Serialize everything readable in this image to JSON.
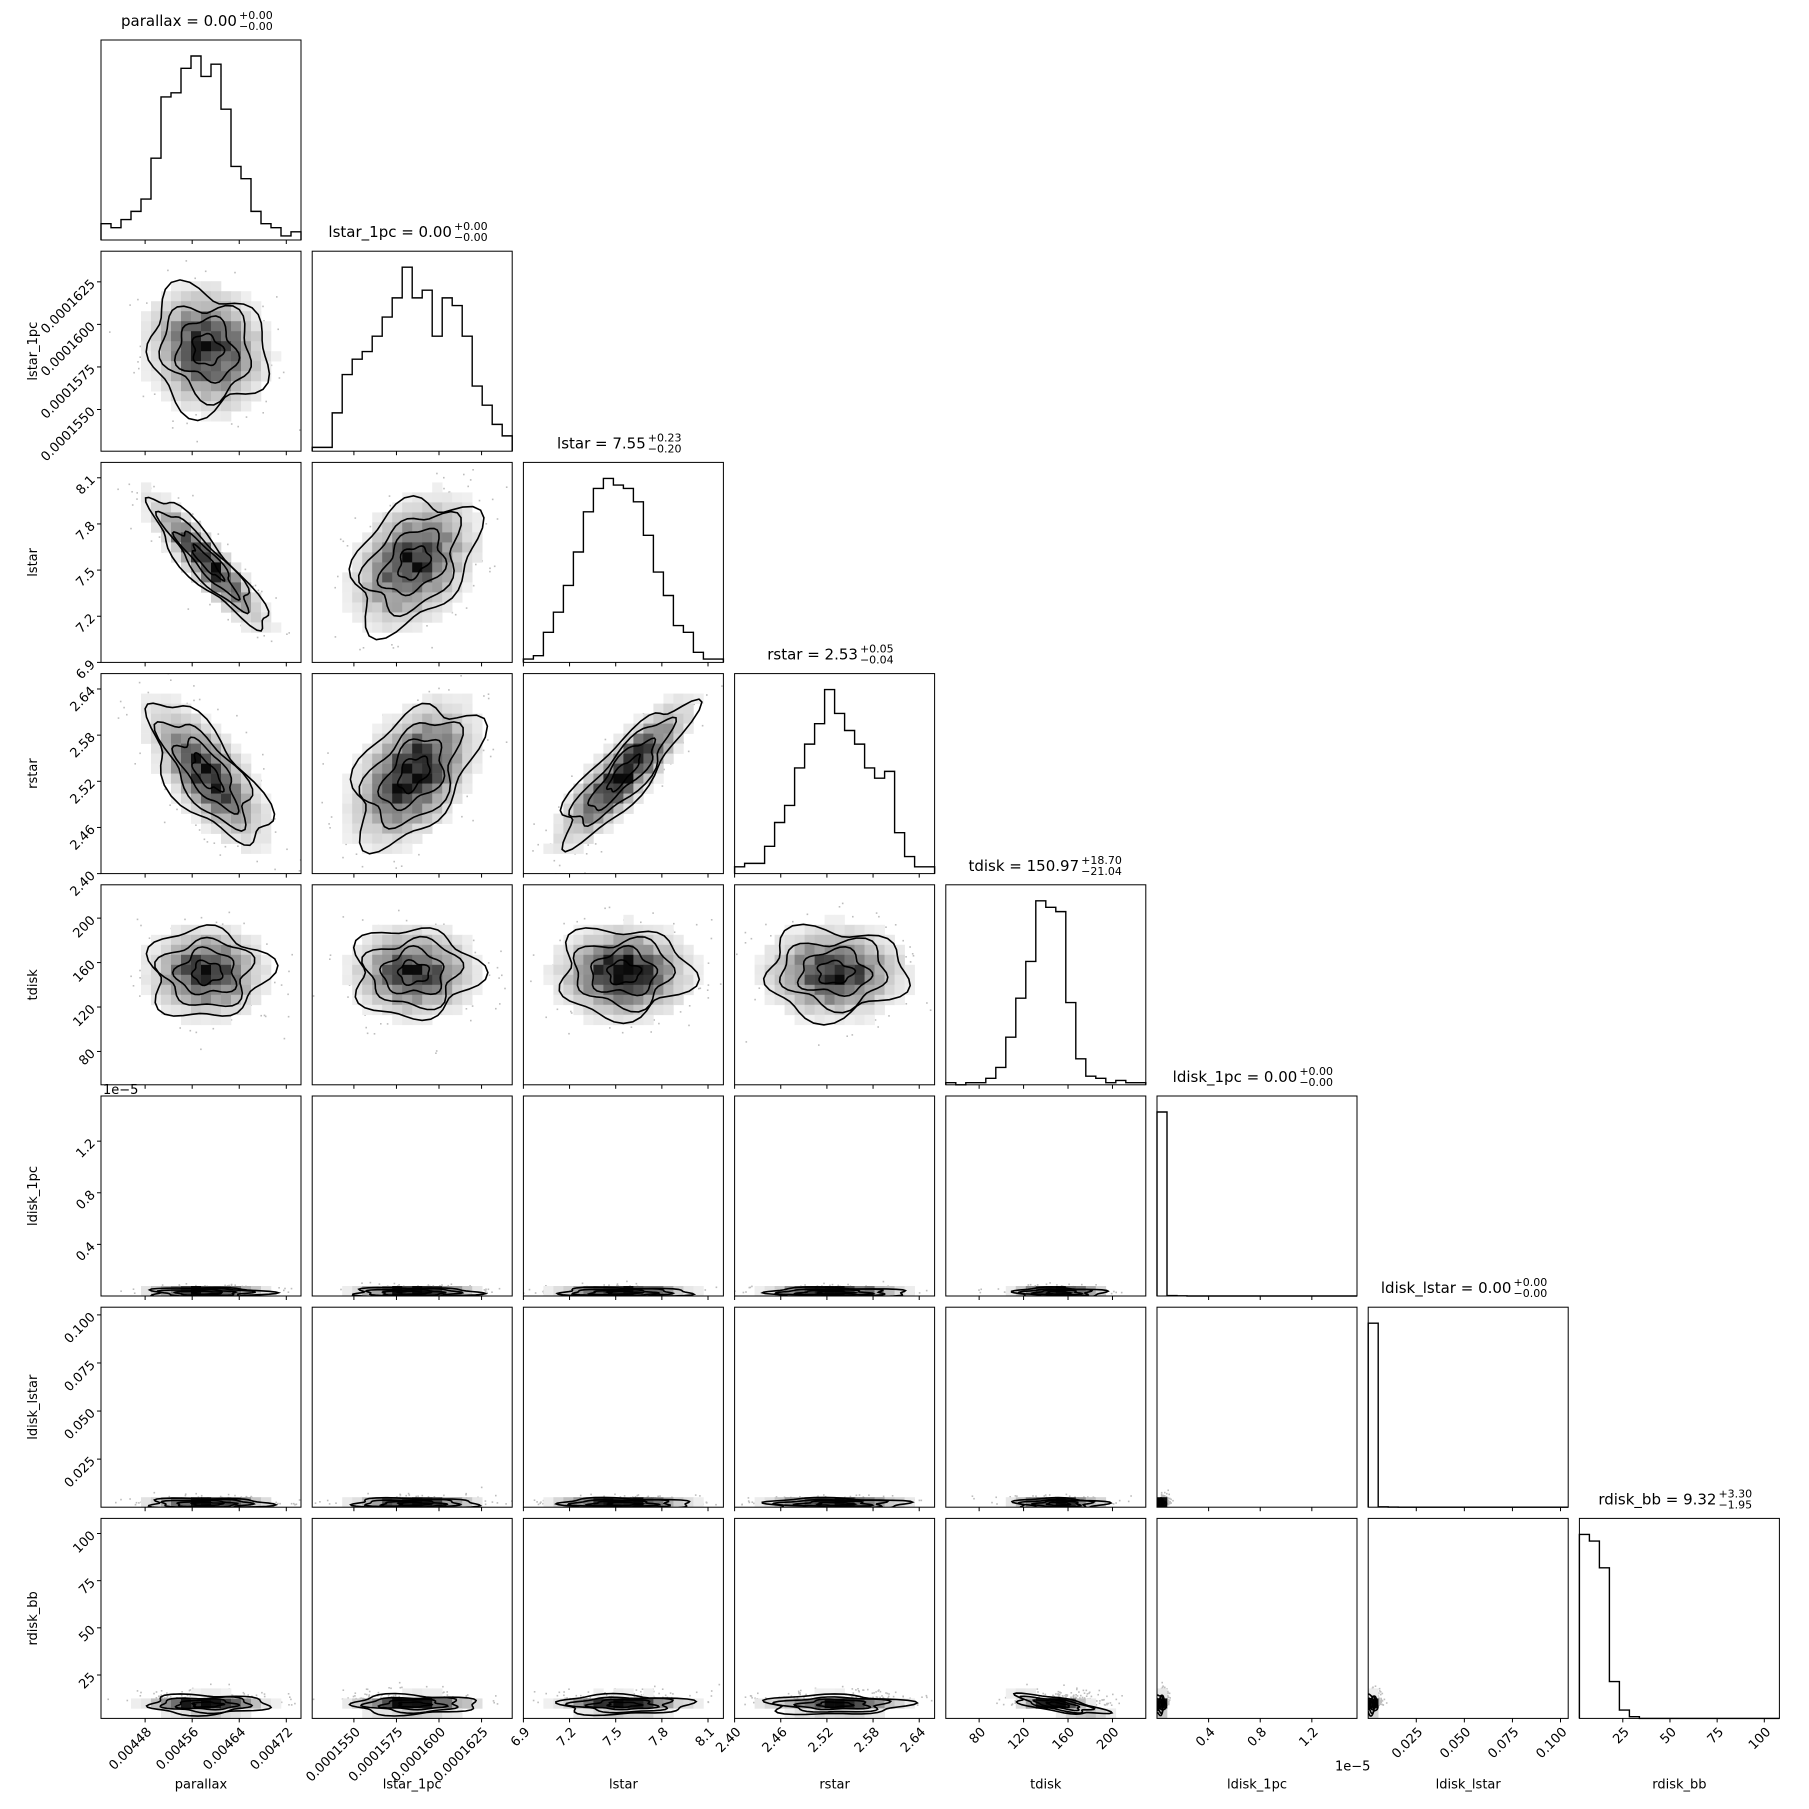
{
  "chart_data": {
    "type": "corner",
    "params": [
      "parallax",
      "lstar_1pc",
      "lstar",
      "rstar",
      "tdisk",
      "ldisk_1pc",
      "ldisk_lstar",
      "rdisk_bb"
    ],
    "titles": [
      {
        "text": "parallax = 0.00",
        "sup": "+0.00",
        "sub": "−0.00"
      },
      {
        "text": "lstar_1pc = 0.00",
        "sup": "+0.00",
        "sub": "−0.00"
      },
      {
        "text": "lstar = 7.55",
        "sup": "+0.23",
        "sub": "−0.20"
      },
      {
        "text": "rstar = 2.53",
        "sup": "+0.05",
        "sub": "−0.04"
      },
      {
        "text": "tdisk = 150.97",
        "sup": "+18.70",
        "sub": "−21.04"
      },
      {
        "text": "ldisk_1pc = 0.00",
        "sup": "+0.00",
        "sub": "−0.00"
      },
      {
        "text": "ldisk_lstar = 0.00",
        "sup": "+0.00",
        "sub": "−0.00"
      },
      {
        "text": "rdisk_bb = 9.32",
        "sup": "+3.30",
        "sub": "−1.95"
      }
    ],
    "ranges": [
      [
        0.004405,
        0.004745
      ],
      [
        0.00015255,
        0.0001643
      ],
      [
        6.9,
        8.2
      ],
      [
        2.4,
        2.66
      ],
      [
        50,
        230
      ],
      [
        0,
        1.55e-05
      ],
      [
        0,
        0.104
      ],
      [
        2,
        108
      ]
    ],
    "ticks": [
      {
        "values": [
          0.00448,
          0.00456,
          0.00464,
          0.00472
        ],
        "labels": [
          "0.00448",
          "0.00456",
          "0.00464",
          "0.00472"
        ]
      },
      {
        "values": [
          0.000155,
          0.0001575,
          0.00016,
          0.0001625
        ],
        "labels": [
          "0.0001550",
          "0.0001575",
          "0.0001600",
          "0.0001625"
        ]
      },
      {
        "values": [
          6.9,
          7.2,
          7.5,
          7.8,
          8.1
        ],
        "labels": [
          "6.9",
          "7.2",
          "7.5",
          "7.8",
          "8.1"
        ]
      },
      {
        "values": [
          2.4,
          2.46,
          2.52,
          2.58,
          2.64
        ],
        "labels": [
          "2.40",
          "2.46",
          "2.52",
          "2.58",
          "2.64"
        ]
      },
      {
        "values": [
          80,
          120,
          160,
          200
        ],
        "labels": [
          "80",
          "120",
          "160",
          "200"
        ]
      },
      {
        "values": [
          4e-06,
          8e-06,
          1.2e-05
        ],
        "labels": [
          "0.4",
          "0.8",
          "1.2"
        ]
      },
      {
        "values": [
          0.025,
          0.05,
          0.075,
          0.1
        ],
        "labels": [
          "0.025",
          "0.050",
          "0.075",
          "0.100"
        ]
      },
      {
        "values": [
          25,
          50,
          75,
          100
        ],
        "labels": [
          "25",
          "50",
          "75",
          "100"
        ]
      }
    ],
    "offset_labels": {
      "ldisk_1pc": "1e−5"
    },
    "histograms": [
      {
        "bins": 20,
        "counts": [
          4,
          3,
          5,
          7,
          10,
          20,
          35,
          36,
          42,
          45,
          40,
          43,
          32,
          18,
          15,
          7,
          4,
          3,
          1,
          2
        ]
      },
      {
        "bins": 20,
        "counts": [
          1,
          1,
          10,
          20,
          24,
          26,
          30,
          35,
          40,
          48,
          40,
          42,
          30,
          40,
          38,
          30,
          17,
          12,
          7,
          4
        ]
      },
      {
        "bins": 20,
        "counts": [
          1,
          2,
          9,
          15,
          23,
          33,
          45,
          52,
          55,
          53,
          52,
          48,
          38,
          27,
          20,
          11,
          9,
          3,
          1,
          1
        ]
      },
      {
        "bins": 20,
        "counts": [
          2,
          3,
          3,
          8,
          15,
          20,
          31,
          38,
          44,
          54,
          47,
          42,
          38,
          31,
          28,
          30,
          12,
          5,
          2,
          2
        ]
      },
      {
        "bins": 20,
        "counts": [
          1,
          0,
          1,
          1,
          3,
          8,
          22,
          40,
          57,
          85,
          82,
          80,
          38,
          12,
          4,
          3,
          1,
          2,
          1,
          1
        ]
      },
      {
        "bins": 20,
        "counts": [
          1000,
          2,
          1,
          0,
          0,
          0,
          0,
          0,
          0,
          0,
          0,
          0,
          0,
          0,
          0,
          0,
          0,
          0,
          0,
          0
        ]
      },
      {
        "bins": 20,
        "counts": [
          1000,
          2,
          1,
          0,
          0,
          0,
          0,
          0,
          0,
          0,
          0,
          0,
          0,
          0,
          0,
          0,
          0,
          0,
          0,
          0
        ]
      },
      {
        "bins": 20,
        "counts": [
          110,
          106,
          90,
          22,
          5,
          1,
          0,
          0,
          0,
          0,
          0,
          0,
          0,
          0,
          0,
          0,
          0,
          0,
          0,
          0
        ]
      }
    ],
    "posterior": {
      "medians": [
        0.004585,
        0.0001585,
        7.55,
        2.53,
        150.97,
        2.5e-07,
        0.0017,
        9.32
      ],
      "sigmas": [
        5e-05,
        1.8e-06,
        0.21,
        0.045,
        20,
        2e-07,
        0.0015,
        2.6
      ],
      "correlations": {
        "lstar|parallax": -0.9,
        "rstar|parallax": -0.7,
        "rstar|lstar_1pc": 0.45,
        "lstar|lstar_1pc": 0.35,
        "rstar|lstar": 0.85,
        "rdisk_bb|tdisk": -0.7,
        "lstar_1pc|parallax": -0.1
      }
    }
  }
}
